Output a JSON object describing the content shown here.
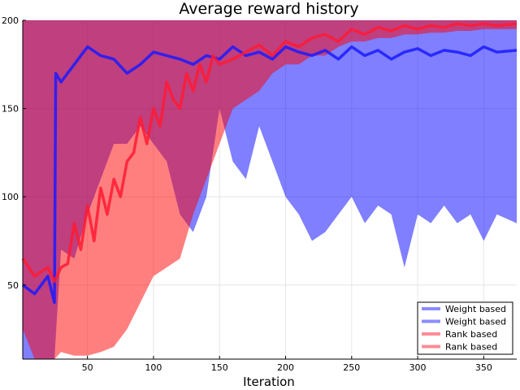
{
  "chart_data": {
    "type": "line",
    "title": "Average reward history",
    "xlabel": "Iteration",
    "ylabel": "",
    "xlim": [
      1,
      375
    ],
    "ylim": [
      8,
      200
    ],
    "xticks": [
      50,
      100,
      150,
      200,
      250,
      300,
      350
    ],
    "yticks": [
      50,
      100,
      150,
      200
    ],
    "grid": true,
    "legend_position": "bottom-right",
    "legend": [
      "Weight based",
      "Weight based",
      "Rank based",
      "Rank based"
    ],
    "colors": {
      "weight": "#1a1aff",
      "rank": "#ff1a33"
    },
    "series": [
      {
        "name": "Weight based",
        "kind": "band",
        "color": "#0000ff",
        "x": [
          1,
          10,
          20,
          25,
          30,
          40,
          50,
          60,
          70,
          80,
          90,
          100,
          110,
          120,
          130,
          140,
          150,
          160,
          170,
          180,
          190,
          200,
          210,
          220,
          230,
          240,
          250,
          260,
          270,
          280,
          290,
          300,
          310,
          320,
          330,
          340,
          350,
          360,
          375
        ],
        "lower": [
          8,
          8,
          8,
          8,
          70,
          65,
          90,
          110,
          130,
          130,
          140,
          130,
          120,
          90,
          80,
          100,
          150,
          120,
          110,
          140,
          120,
          100,
          90,
          75,
          80,
          90,
          100,
          85,
          95,
          90,
          60,
          90,
          85,
          95,
          85,
          90,
          75,
          90,
          85
        ],
        "upper": [
          200,
          200,
          200,
          200,
          200,
          200,
          200,
          200,
          200,
          200,
          200,
          200,
          200,
          200,
          200,
          200,
          200,
          200,
          200,
          200,
          200,
          200,
          200,
          200,
          200,
          200,
          200,
          200,
          200,
          200,
          200,
          200,
          200,
          200,
          200,
          200,
          200,
          200,
          200
        ]
      },
      {
        "name": "Weight based",
        "kind": "line",
        "color": "#1a1aff",
        "x": [
          1,
          10,
          20,
          25,
          26,
          30,
          40,
          50,
          60,
          70,
          80,
          90,
          100,
          110,
          120,
          130,
          140,
          150,
          160,
          170,
          180,
          190,
          200,
          210,
          220,
          230,
          240,
          250,
          260,
          270,
          280,
          290,
          300,
          310,
          320,
          330,
          340,
          350,
          360,
          375
        ],
        "values": [
          50,
          45,
          55,
          40,
          170,
          165,
          175,
          185,
          180,
          178,
          170,
          175,
          182,
          180,
          178,
          175,
          180,
          178,
          185,
          180,
          182,
          178,
          185,
          182,
          180,
          183,
          178,
          185,
          180,
          183,
          178,
          182,
          184,
          180,
          183,
          182,
          180,
          185,
          182,
          183
        ]
      },
      {
        "name": "Rank based",
        "kind": "band",
        "color": "#ff0000",
        "x": [
          1,
          10,
          20,
          25,
          30,
          40,
          50,
          60,
          70,
          80,
          90,
          100,
          110,
          120,
          130,
          140,
          150,
          160,
          170,
          180,
          190,
          200,
          210,
          220,
          230,
          240,
          250,
          260,
          270,
          280,
          290,
          300,
          310,
          320,
          330,
          340,
          350,
          360,
          375
        ],
        "lower": [
          25,
          8,
          8,
          8,
          12,
          10,
          10,
          12,
          15,
          25,
          40,
          55,
          60,
          65,
          90,
          110,
          130,
          150,
          155,
          160,
          170,
          175,
          175,
          180,
          180,
          185,
          188,
          188,
          190,
          190,
          192,
          192,
          193,
          193,
          194,
          194,
          195,
          195,
          195
        ],
        "upper": [
          200,
          200,
          200,
          200,
          200,
          200,
          200,
          200,
          200,
          200,
          200,
          200,
          200,
          200,
          200,
          200,
          200,
          200,
          200,
          200,
          200,
          200,
          200,
          200,
          200,
          200,
          200,
          200,
          200,
          200,
          200,
          200,
          200,
          200,
          200,
          200,
          200,
          200,
          200
        ]
      },
      {
        "name": "Rank based",
        "kind": "line",
        "color": "#ff1a33",
        "x": [
          1,
          10,
          20,
          25,
          30,
          35,
          40,
          45,
          50,
          55,
          60,
          65,
          70,
          75,
          80,
          85,
          90,
          95,
          100,
          105,
          110,
          115,
          120,
          125,
          130,
          135,
          140,
          145,
          150,
          160,
          170,
          180,
          190,
          200,
          210,
          220,
          230,
          240,
          250,
          260,
          270,
          280,
          290,
          300,
          310,
          320,
          330,
          340,
          350,
          360,
          375
        ],
        "values": [
          65,
          55,
          60,
          52,
          60,
          62,
          85,
          70,
          95,
          75,
          105,
          90,
          110,
          100,
          120,
          125,
          145,
          130,
          150,
          140,
          165,
          155,
          150,
          170,
          160,
          175,
          165,
          180,
          175,
          178,
          182,
          186,
          180,
          188,
          185,
          190,
          192,
          188,
          195,
          192,
          196,
          194,
          197,
          195,
          197,
          196,
          198,
          197,
          198,
          197,
          198
        ]
      }
    ]
  }
}
